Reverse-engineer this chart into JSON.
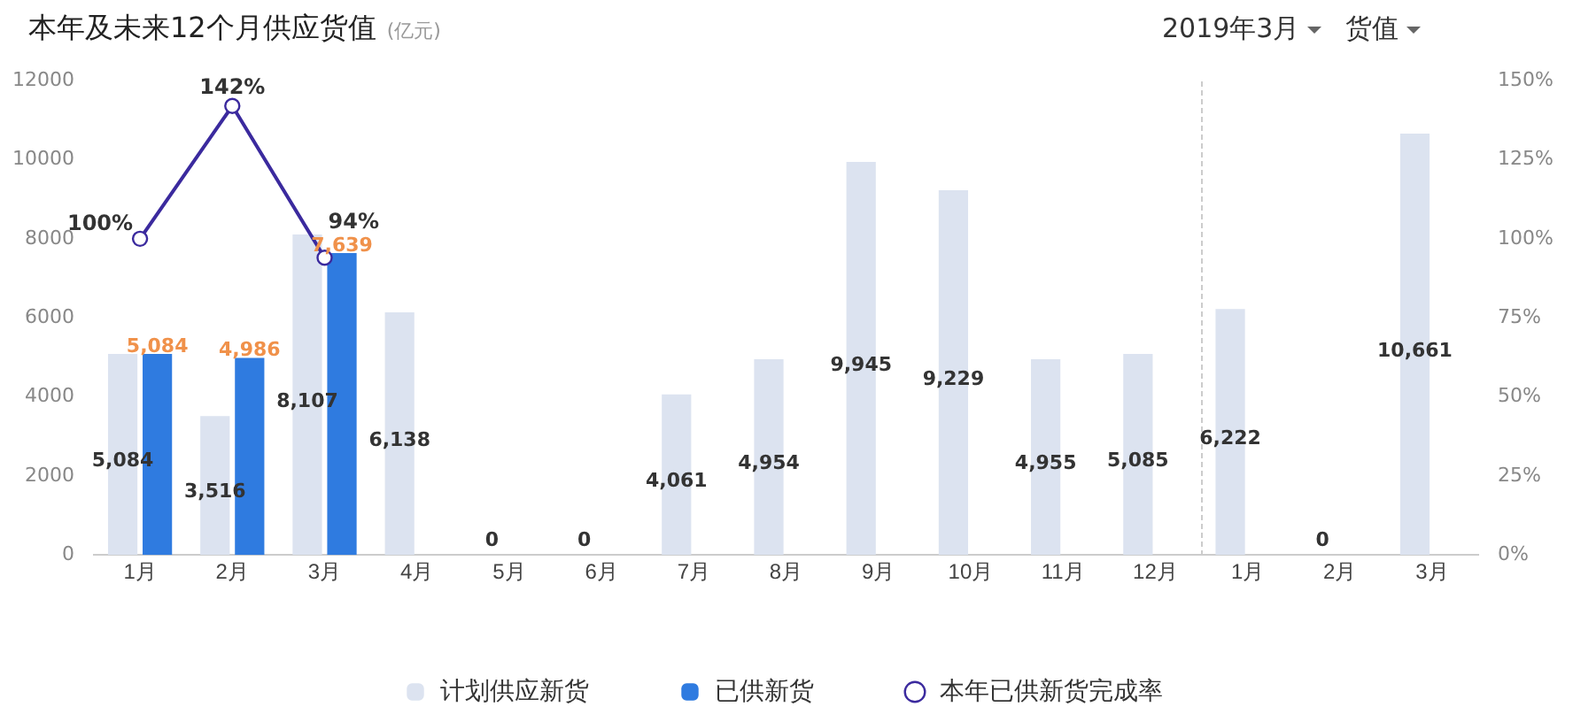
{
  "chart_data": {
    "type": "bar",
    "title": "本年及未来12个月供应货值",
    "subtitle": "(亿元)",
    "annotations": [
      "2019年3月",
      "货值"
    ],
    "categories": [
      "1月",
      "2月",
      "3月",
      "4月",
      "5月",
      "6月",
      "7月",
      "8月",
      "9月",
      "10月",
      "11月",
      "12月",
      "1月",
      "2月",
      "3月"
    ],
    "series": [
      {
        "name": "计划供应新货",
        "color": "#dce3f0",
        "values": [
          5084,
          3516,
          8107,
          6138,
          0,
          0,
          4061,
          4954,
          9945,
          9229,
          4955,
          5085,
          6222,
          0,
          10661
        ],
        "value_labels": [
          "5,084",
          "3,516",
          "8,107",
          "6,138",
          "0",
          "0",
          "4,061",
          "4,954",
          "9,945",
          "9,229",
          "4,955",
          "5,085",
          "6,222",
          "0",
          "10,661"
        ]
      },
      {
        "name": "已供新货",
        "color": "#2f7be0",
        "values": [
          5084,
          4986,
          7639,
          null,
          null,
          null,
          null,
          null,
          null,
          null,
          null,
          null,
          null,
          null,
          null
        ],
        "value_labels": [
          "5,084",
          "4,986",
          "7,639",
          null,
          null,
          null,
          null,
          null,
          null,
          null,
          null,
          null,
          null,
          null,
          null
        ]
      },
      {
        "name": "本年已供新货完成率",
        "type": "line",
        "axis": "y2",
        "color": "#3b2a9e",
        "marker": "circle",
        "values": [
          100,
          142,
          94,
          null,
          null,
          null,
          null,
          null,
          null,
          null,
          null,
          null,
          null,
          null,
          null
        ],
        "value_labels": [
          "100%",
          "142%",
          "94%",
          null,
          null,
          null,
          null,
          null,
          null,
          null,
          null,
          null,
          null,
          null,
          null
        ]
      }
    ],
    "ylim": [
      0,
      12000
    ],
    "yticks": [
      0,
      2000,
      4000,
      6000,
      8000,
      10000,
      12000
    ],
    "y2lim": [
      0,
      150
    ],
    "y2ticks": [
      {
        "value": 0,
        "label": "0%"
      },
      {
        "value": 25,
        "label": "25%"
      },
      {
        "value": 50,
        "label": "50%"
      },
      {
        "value": 75,
        "label": "75%"
      },
      {
        "value": 100,
        "label": "100%"
      },
      {
        "value": 125,
        "label": "125%"
      },
      {
        "value": 150,
        "label": "150%"
      }
    ],
    "grid": false,
    "legend": "bottom"
  }
}
